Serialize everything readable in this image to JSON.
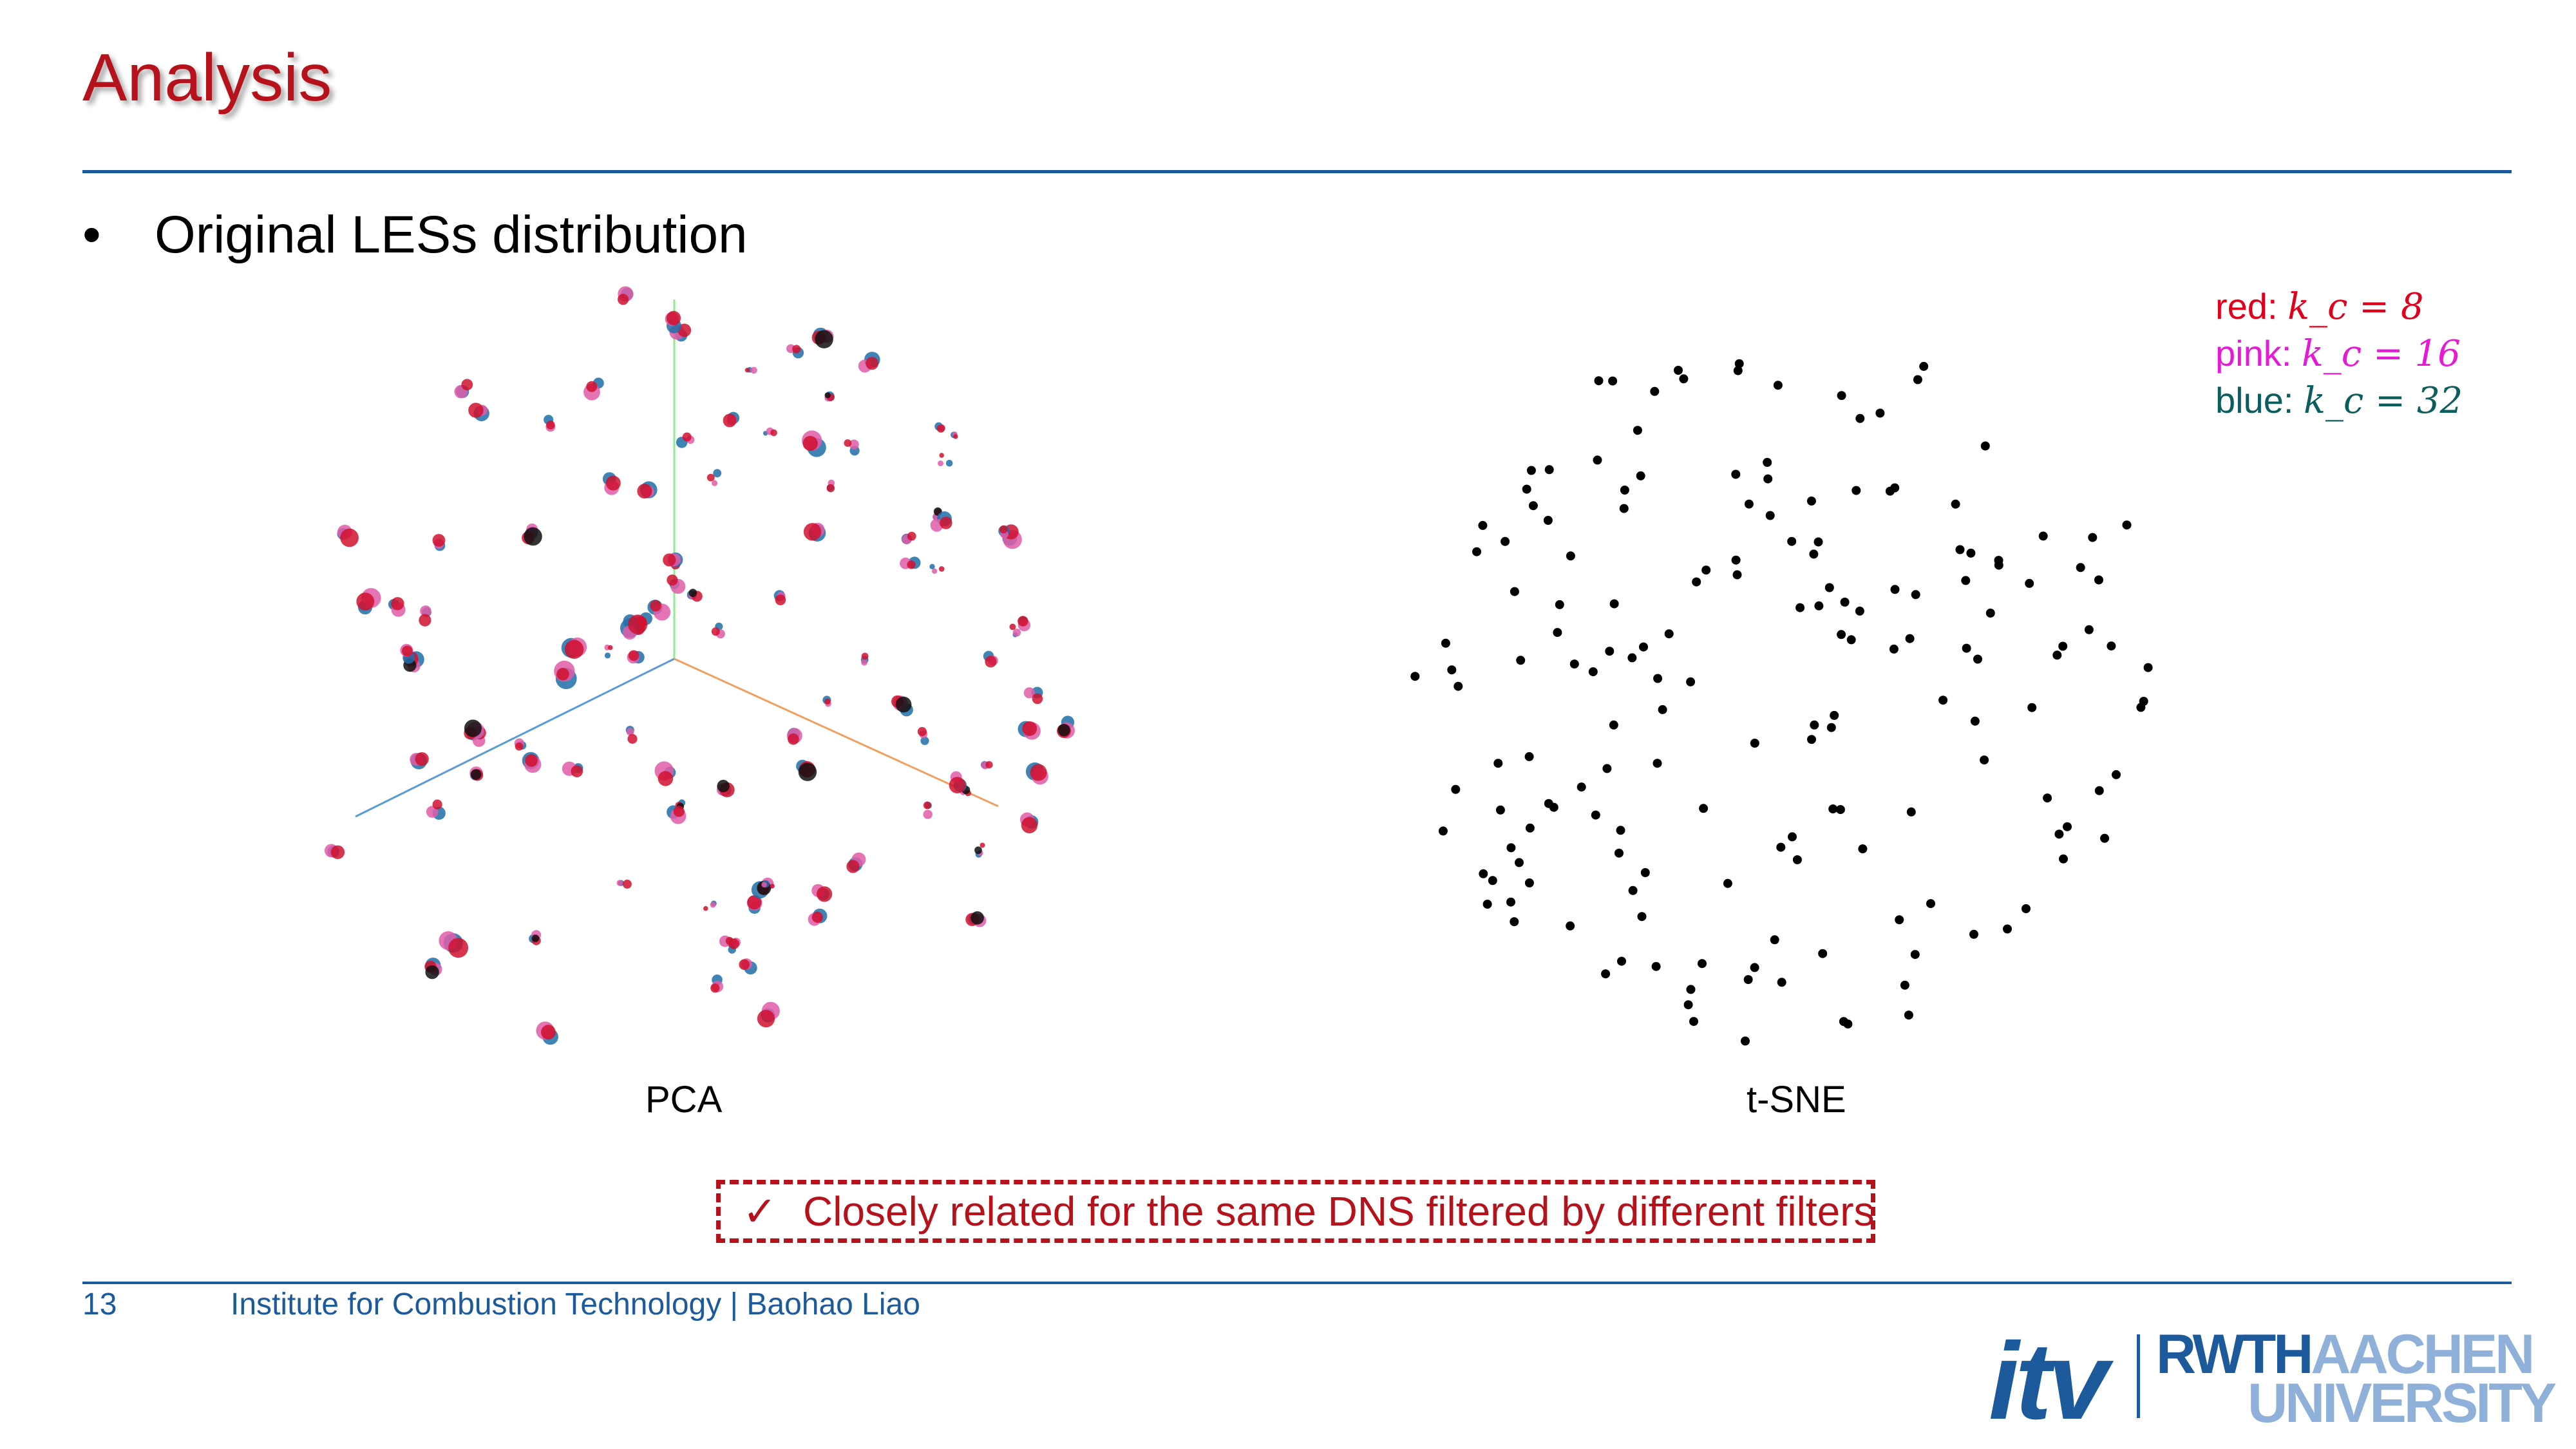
{
  "slide": {
    "title": "Analysis",
    "bullet_symbol": "•",
    "bullet_text": "Original LESs distribution",
    "plots": {
      "left_label": "PCA",
      "right_label": "t-SNE"
    },
    "legend": {
      "items": [
        {
          "prefix": "red: ",
          "eq": "k_c = 8",
          "color": "#e0001b"
        },
        {
          "prefix": "pink: ",
          "eq": "k_c = 16",
          "color": "#e619d6"
        },
        {
          "prefix": "blue: ",
          "eq": "k_c = 32",
          "color": "#0b5d5e"
        }
      ]
    },
    "callout": {
      "check": "✓",
      "text": "Closely related for the same DNS filtered by different filters"
    },
    "footer": {
      "page_number": "13",
      "institute": "Institute for Combustion Technology | Baohao Liao"
    },
    "logos": {
      "itv": "itv",
      "rwth_dark": "RWTH",
      "rwth_light": "AACHEN",
      "university": "UNIVERSITY"
    },
    "colors": {
      "accent_red": "#b5121b",
      "rule_blue": "#1d5a9c",
      "pca_red": "#d0102e",
      "pca_pink": "#e05ca8",
      "pca_blue": "#1f6fa8",
      "pca_black": "#111111"
    }
  }
}
